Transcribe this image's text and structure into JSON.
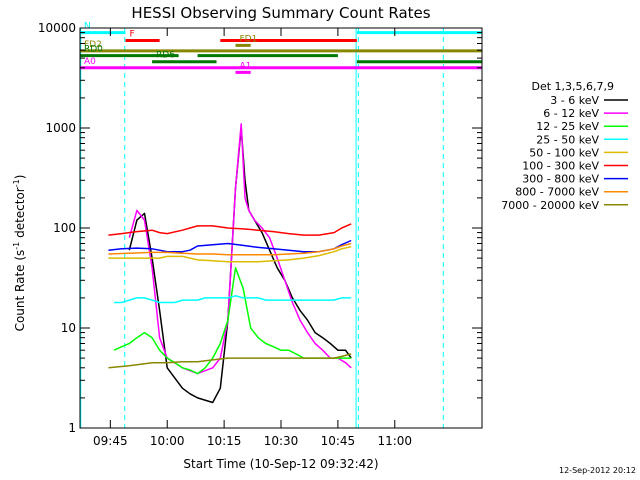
{
  "chart_data": {
    "type": "line",
    "title": "HESSI Observing Summary Count Rates",
    "xlabel": "Start Time (10-Sep-12 09:32:42)",
    "ylabel_main": "Count Rate (s",
    "ylabel_sup1": "-1",
    "ylabel_mid": " detector",
    "ylabel_sup2": "-1",
    "ylabel_end": ")",
    "ylabel": "Count Rate (s-1 detector-1)",
    "yscale": "log",
    "ylim": [
      1,
      10000
    ],
    "x_unit": "minutes of day (UT)",
    "xlim": [
      577,
      683
    ],
    "x_ticks": [
      {
        "value": 585,
        "label": "09:45"
      },
      {
        "value": 600,
        "label": "10:00"
      },
      {
        "value": 615,
        "label": "10:15"
      },
      {
        "value": 630,
        "label": "10:30"
      },
      {
        "value": 645,
        "label": "10:45"
      },
      {
        "value": 660,
        "label": "11:00"
      }
    ],
    "y_ticks": [
      {
        "value": 1,
        "label": "1"
      },
      {
        "value": 10,
        "label": "10"
      },
      {
        "value": 100,
        "label": "100"
      },
      {
        "value": 1000,
        "label": "1000"
      },
      {
        "value": 10000,
        "label": "10000"
      }
    ],
    "legend_title": "Det 1,3,5,6,7,9",
    "legend_position": "right",
    "series": [
      {
        "name": "3 - 6 keV",
        "color": "#000000",
        "x": [
          590,
          592,
          594,
          596,
          598,
          600,
          604,
          606,
          608,
          612,
          614,
          616,
          618,
          619.5,
          620.5,
          621.5,
          623,
          625,
          627,
          629,
          631,
          633,
          635,
          637,
          639,
          641,
          643,
          645,
          647,
          648.5
        ],
        "y": [
          60,
          120,
          140,
          50,
          15,
          4,
          2.5,
          2.2,
          2,
          1.8,
          2.5,
          12,
          250,
          1000,
          300,
          150,
          120,
          90,
          60,
          40,
          30,
          20,
          15,
          12,
          9,
          8,
          7,
          6,
          6,
          5
        ]
      },
      {
        "name": "6 - 12 keV",
        "color": "#ff00ff",
        "x": [
          590,
          592,
          594,
          596,
          598,
          600,
          604,
          608,
          612,
          614,
          616,
          618,
          619.5,
          620.5,
          621.5,
          623,
          625,
          627,
          629,
          631,
          633,
          635,
          637,
          639,
          641,
          643,
          645,
          647,
          648.5
        ],
        "y": [
          80,
          150,
          120,
          40,
          8,
          5,
          4,
          3.5,
          4,
          5,
          12,
          250,
          1100,
          200,
          150,
          120,
          100,
          80,
          50,
          30,
          18,
          12,
          9,
          7,
          6,
          5,
          5,
          4.5,
          4
        ]
      },
      {
        "name": "12 - 25 keV",
        "color": "#00ff00",
        "x": [
          586,
          588,
          590,
          592,
          594,
          596,
          598,
          600,
          602,
          604,
          606,
          608,
          610,
          612,
          614,
          616,
          618,
          620,
          622,
          624,
          626,
          628,
          630,
          632,
          634,
          636,
          638,
          640,
          642,
          644,
          646,
          648.5
        ],
        "y": [
          6,
          6.5,
          7,
          8,
          9,
          8,
          6,
          5,
          4.5,
          4,
          3.8,
          3.5,
          4,
          5,
          7,
          12,
          40,
          25,
          10,
          8,
          7,
          6.5,
          6,
          6,
          5.5,
          5,
          5,
          5,
          5,
          5,
          5,
          5
        ]
      },
      {
        "name": "25 - 50 keV",
        "color": "#00ffff",
        "x": [
          586,
          588,
          590,
          592,
          594,
          596,
          598,
          600,
          602,
          604,
          606,
          608,
          610,
          612,
          614,
          616,
          618,
          620,
          622,
          624,
          626,
          628,
          630,
          632,
          634,
          636,
          638,
          640,
          642,
          644,
          646,
          648.5
        ],
        "y": [
          18,
          18,
          19,
          20,
          20,
          19,
          18,
          18,
          18,
          19,
          19,
          19,
          20,
          20,
          20,
          20,
          21,
          20,
          20,
          20,
          19,
          19,
          19,
          19,
          19,
          19,
          19,
          19,
          19,
          19,
          20,
          20
        ]
      },
      {
        "name": "50 - 100 keV",
        "color": "#ddbb00",
        "x": [
          584.5,
          598,
          600,
          604,
          606,
          608,
          612,
          616,
          620,
          624,
          628,
          632,
          636,
          640,
          644,
          646,
          648.5
        ],
        "y": [
          50,
          50,
          52,
          52,
          50,
          48,
          47,
          46,
          46,
          46,
          47,
          48,
          50,
          53,
          58,
          62,
          65
        ]
      },
      {
        "name": "100 - 300 keV",
        "color": "#ff0000",
        "x": [
          584.5,
          588,
          592,
          596,
          598,
          600,
          604,
          606,
          608,
          612,
          616,
          620,
          624,
          628,
          632,
          636,
          640,
          644,
          646,
          648.5
        ],
        "y": [
          85,
          88,
          92,
          95,
          90,
          88,
          95,
          100,
          105,
          105,
          100,
          98,
          95,
          92,
          88,
          85,
          85,
          90,
          100,
          110
        ]
      },
      {
        "name": "300 - 800 keV",
        "color": "#0000ff",
        "x": [
          584.5,
          588,
          592,
          596,
          598,
          600,
          604,
          606,
          608,
          612,
          616,
          620,
          624,
          628,
          632,
          636,
          640,
          644,
          646,
          648.5
        ],
        "y": [
          60,
          62,
          63,
          62,
          60,
          58,
          58,
          60,
          66,
          68,
          70,
          67,
          64,
          62,
          60,
          58,
          58,
          62,
          68,
          75
        ]
      },
      {
        "name": "800 - 7000 keV",
        "color": "#ff8800",
        "x": [
          584.5,
          590,
          596,
          600,
          604,
          608,
          612,
          616,
          620,
          624,
          628,
          632,
          636,
          640,
          644,
          646,
          648.5
        ],
        "y": [
          55,
          56,
          57,
          57,
          56,
          55,
          55,
          54,
          54,
          54,
          54,
          55,
          56,
          58,
          62,
          66,
          70
        ]
      },
      {
        "name": "7000 - 20000 keV",
        "color": "#888800",
        "x": [
          584.5,
          590,
          596,
          600,
          604,
          608,
          612,
          616,
          620,
          624,
          628,
          632,
          636,
          640,
          644,
          646,
          648.5
        ],
        "y": [
          4,
          4.2,
          4.5,
          4.5,
          4.6,
          4.6,
          4.8,
          5,
          5,
          5,
          5,
          5,
          5,
          5,
          5,
          5.2,
          5.5
        ]
      }
    ],
    "flag_bars": [
      {
        "label": "N",
        "color": "#00ffff",
        "segments": [
          [
            577,
            589
          ],
          [
            650,
            683
          ]
        ],
        "y": 9000
      },
      {
        "label": "F",
        "color": "#ff0000",
        "segments": [
          [
            589,
            598
          ],
          [
            614,
            650
          ]
        ],
        "y": 7500
      },
      {
        "label": "FD1",
        "color": "#888800",
        "segments": [
          [
            618,
            622
          ]
        ],
        "y": 6700
      },
      {
        "label": "FD2",
        "color": "#888800",
        "segments": [
          [
            577,
            683
          ]
        ],
        "y": 5900
      },
      {
        "label": "RD0",
        "color": "#007700",
        "segments": [
          [
            577,
            603
          ],
          [
            608,
            645
          ]
        ],
        "y": 5300
      },
      {
        "label": "RD6",
        "color": "#007700",
        "segments": [
          [
            596,
            613
          ],
          [
            650,
            683
          ]
        ],
        "y": 4600
      },
      {
        "label": "A0",
        "color": "#ff00ff",
        "segments": [
          [
            577,
            683
          ]
        ],
        "y": 4000
      },
      {
        "label": "A1",
        "color": "#ff00ff",
        "segments": [
          [
            618,
            622
          ]
        ],
        "y": 3600
      }
    ],
    "vertical_markers": [
      {
        "x": 577.2,
        "color": "#00ffff",
        "style": "solid"
      },
      {
        "x": 588.8,
        "color": "#00ffff",
        "style": "dashed"
      },
      {
        "x": 649.8,
        "color": "#00ffff",
        "style": "solid"
      },
      {
        "x": 650.4,
        "color": "#00ffff",
        "style": "dashed"
      },
      {
        "x": 672.8,
        "color": "#00ffff",
        "style": "dashed"
      }
    ]
  },
  "footer_date": "12-Sep-2012 20:12"
}
